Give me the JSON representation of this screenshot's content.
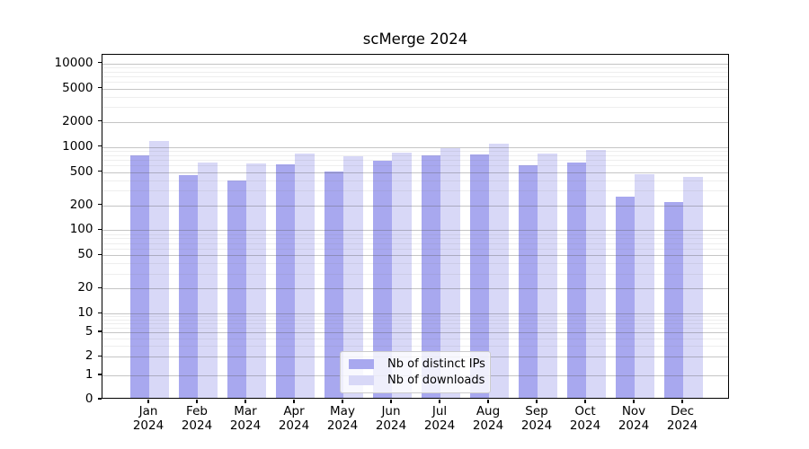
{
  "figure": {
    "title": "scMerge 2024"
  },
  "colors": {
    "ips_bar": "#a8a8ef",
    "downloads_bar": "#d8d8f7",
    "grid_major": "rgba(90,90,90,0.35)",
    "grid_minor": "rgba(120,120,120,0.13)",
    "axis": "#000000",
    "legend_border": "#cccccc"
  },
  "y_axis": {
    "tick_labels": [
      "10000",
      "5000",
      "2000",
      "1000",
      "500",
      "200",
      "100",
      "50",
      "20",
      "10",
      "5",
      "2",
      "1",
      "0"
    ]
  },
  "x_axis": {
    "months": [
      "Jan",
      "Feb",
      "Mar",
      "Apr",
      "May",
      "Jun",
      "Jul",
      "Aug",
      "Sep",
      "Oct",
      "Nov",
      "Dec"
    ],
    "year": "2024"
  },
  "chart_data": {
    "type": "bar",
    "title": "scMerge 2024",
    "categories": [
      "Jan 2024",
      "Feb 2024",
      "Mar 2024",
      "Apr 2024",
      "May 2024",
      "Jun 2024",
      "Jul 2024",
      "Aug 2024",
      "Sep 2024",
      "Oct 2024",
      "Nov 2024",
      "Dec 2024"
    ],
    "series": [
      {
        "name": "Nb of distinct IPs",
        "color": "#a8a8ef",
        "values": [
          760,
          440,
          380,
          585,
          485,
          645,
          750,
          770,
          575,
          620,
          240,
          210
        ]
      },
      {
        "name": "Nb of downloads",
        "color": "#d8d8f7",
        "values": [
          1120,
          620,
          600,
          795,
          735,
          810,
          920,
          1050,
          795,
          870,
          445,
          415
        ]
      }
    ],
    "yscale": "symlog",
    "ylim": [
      0,
      10000
    ],
    "yticks": [
      10000,
      5000,
      2000,
      1000,
      500,
      200,
      100,
      50,
      20,
      10,
      5,
      2,
      1,
      0
    ],
    "xlabel": "",
    "ylabel": "",
    "grid": true,
    "legend_position": "lower center"
  }
}
